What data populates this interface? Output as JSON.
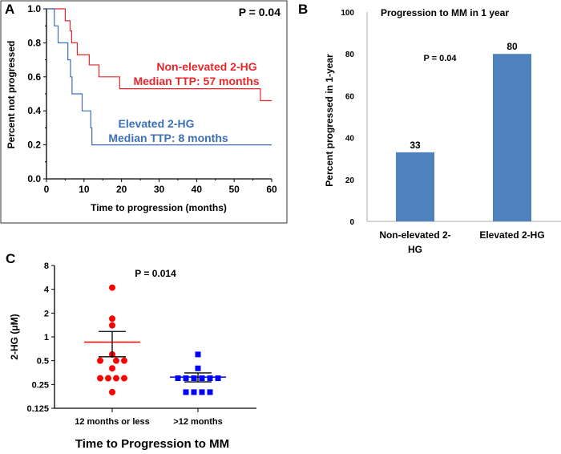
{
  "chart_data": [
    {
      "panel": "A",
      "type": "line",
      "step": true,
      "annotation": "P = 0.04",
      "xlabel": "Time to progression (months)",
      "ylabel": "Percent not progressed",
      "xlim": [
        0,
        60
      ],
      "ylim": [
        0,
        1.0
      ],
      "xticks": [
        "0",
        "10",
        "20",
        "30",
        "40",
        "50",
        "60"
      ],
      "yticks": [
        "0.0",
        "0.2",
        "0.4",
        "0.6",
        "0.8",
        "1.0"
      ],
      "series": [
        {
          "name": "Non-elevated 2-HG",
          "label2": "Median TTP: 57 months",
          "color": "#e8272d",
          "x": [
            0,
            5,
            6.3,
            6.7,
            8.2,
            11.4,
            14,
            19.5,
            57,
            60
          ],
          "y": [
            1.0,
            0.93,
            0.87,
            0.8,
            0.73,
            0.67,
            0.6,
            0.53,
            0.46,
            0.46
          ]
        },
        {
          "name": "Elevated 2-HG",
          "label2": "Median TTP: 8 months",
          "color": "#3b6fb6",
          "x": [
            0,
            2.1,
            3.1,
            5.7,
            6.4,
            6.8,
            9.5,
            11.8,
            12.1,
            60
          ],
          "y": [
            1.0,
            0.9,
            0.8,
            0.7,
            0.6,
            0.5,
            0.4,
            0.3,
            0.2,
            0.2
          ]
        }
      ]
    },
    {
      "panel": "B",
      "type": "bar",
      "title": "Progression to MM in 1 year",
      "annotation": "P = 0.04",
      "ylabel": "Percent progressed in 1-year",
      "categories": [
        [
          "Non-elevated 2-",
          "HG"
        ],
        [
          "Elevated 2-HG"
        ]
      ],
      "values": [
        33,
        80
      ],
      "data_labels": [
        "33",
        "80"
      ],
      "ylim": [
        0,
        100
      ],
      "yticks": [
        "0",
        "20",
        "40",
        "60",
        "80",
        "100"
      ],
      "color": "#4f81bd"
    },
    {
      "panel": "C",
      "type": "scatter",
      "annotation": "P = 0.014",
      "xlabel": "Time to Progression to MM",
      "ylabel": "2-HG (μM)",
      "yscale": "log2",
      "ylim": [
        0.125,
        8
      ],
      "yticks": [
        "0.125",
        "0.25",
        "0.5",
        "1",
        "2",
        "4",
        "8"
      ],
      "categories": [
        "12 months or less",
        ">12 months"
      ],
      "groups": [
        {
          "category": "12 months or less",
          "marker": "circle",
          "color": "#ff0000",
          "mean_color": "#ff0000",
          "values": [
            4.2,
            1.7,
            1.4,
            0.6,
            0.5,
            0.5,
            0.5,
            0.4,
            0.3,
            0.3,
            0.3,
            0.3,
            0.2
          ],
          "mean": 0.86,
          "sem_low": 0.56,
          "sem_high": 1.17
        },
        {
          "category": ">12 months",
          "marker": "square",
          "color": "#0000ff",
          "mean_color": "#0000ff",
          "values": [
            0.6,
            0.4,
            0.3,
            0.3,
            0.3,
            0.3,
            0.3,
            0.3,
            0.2,
            0.2,
            0.2,
            0.2
          ],
          "mean": 0.31,
          "sem_low": 0.27,
          "sem_high": 0.35
        }
      ]
    }
  ],
  "panel_labels": [
    "A",
    "B",
    "C"
  ]
}
